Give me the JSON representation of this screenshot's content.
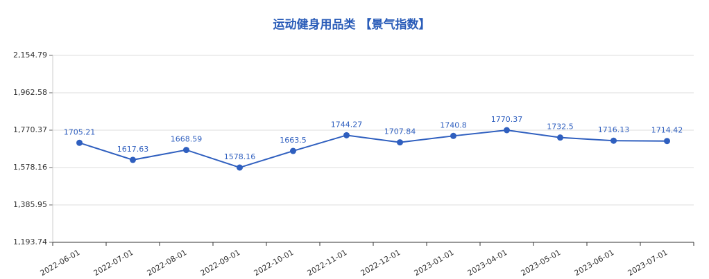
{
  "chart_data": {
    "type": "line",
    "title": "运动健身用品类 【景气指数】",
    "categories": [
      "2022-06-01",
      "2022-07-01",
      "2022-08-01",
      "2022-09-01",
      "2022-10-01",
      "2022-11-01",
      "2022-12-01",
      "2023-01-01",
      "2023-04-01",
      "2023-05-01",
      "2023-06-01",
      "2023-07-01"
    ],
    "series": [
      {
        "name": "景气指数",
        "color": "#2f5fbf",
        "values": [
          1705.21,
          1617.63,
          1668.59,
          1578.16,
          1663.5,
          1744.27,
          1707.84,
          1740.8,
          1770.37,
          1732.5,
          1716.13,
          1714.42
        ]
      }
    ],
    "ylim": [
      1193.74,
      2154.79
    ],
    "yticks": [
      {
        "value": 1193.74,
        "label": "1,193.74"
      },
      {
        "value": 1385.95,
        "label": "1,385.95"
      },
      {
        "value": 1578.16,
        "label": "1,578.16"
      },
      {
        "value": 1770.37,
        "label": "1,770.37"
      },
      {
        "value": 1962.58,
        "label": "1,962.58"
      },
      {
        "value": 2154.79,
        "label": "2,154.79"
      }
    ],
    "grid": true
  }
}
